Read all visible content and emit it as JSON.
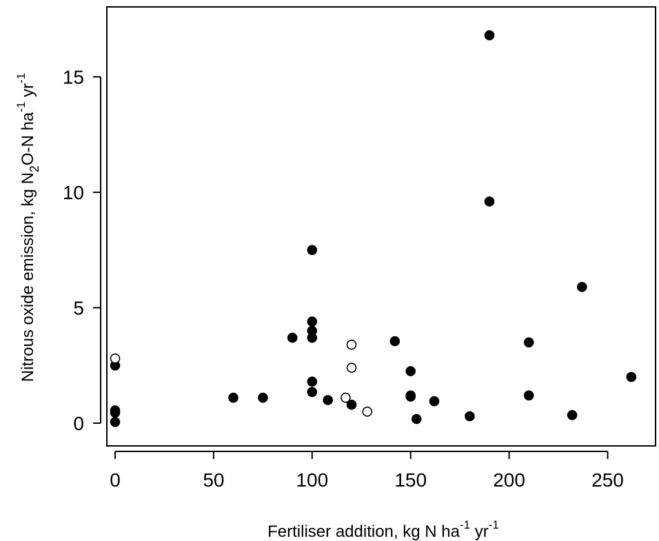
{
  "chart_data": {
    "type": "scatter",
    "xlabel_text": "Fertiliser addition, kg N ha",
    "xlabel_sup1": "-1",
    "xlabel_mid": " yr",
    "xlabel_sup2": "-1",
    "ylabel_text": "Nitrous oxide emission, kg N",
    "ylabel_sub": "2",
    "ylabel_mid": "O-N ha",
    "ylabel_sup1": "-1",
    "ylabel_mid2": " yr",
    "ylabel_sup2": "-1",
    "xlim": [
      -5,
      275
    ],
    "ylim": [
      -1,
      18
    ],
    "xticks": [
      0,
      50,
      100,
      150,
      200,
      250
    ],
    "yticks": [
      0,
      5,
      10,
      15
    ],
    "grid": false,
    "series": [
      {
        "marker": "filled-circle",
        "points": [
          [
            0,
            2.5
          ],
          [
            0,
            0.55
          ],
          [
            0,
            0.45
          ],
          [
            0,
            0.05
          ],
          [
            60,
            1.1
          ],
          [
            75,
            1.1
          ],
          [
            90,
            3.7
          ],
          [
            100,
            7.5
          ],
          [
            100,
            4.4
          ],
          [
            100,
            4.0
          ],
          [
            100,
            3.7
          ],
          [
            100,
            1.8
          ],
          [
            100,
            1.35
          ],
          [
            108,
            1.0
          ],
          [
            120,
            0.8
          ],
          [
            142,
            3.55
          ],
          [
            150,
            2.25
          ],
          [
            150,
            1.2
          ],
          [
            150,
            1.15
          ],
          [
            153,
            0.18
          ],
          [
            162,
            0.95
          ],
          [
            180,
            0.3
          ],
          [
            190,
            16.8
          ],
          [
            190,
            9.6
          ],
          [
            210,
            3.5
          ],
          [
            210,
            1.2
          ],
          [
            232,
            0.35
          ],
          [
            237,
            5.9
          ],
          [
            262,
            2.0
          ]
        ]
      },
      {
        "marker": "open-circle",
        "points": [
          [
            0,
            2.8
          ],
          [
            117,
            1.1
          ],
          [
            120,
            3.4
          ],
          [
            120,
            2.4
          ],
          [
            128,
            0.5
          ]
        ]
      }
    ]
  }
}
